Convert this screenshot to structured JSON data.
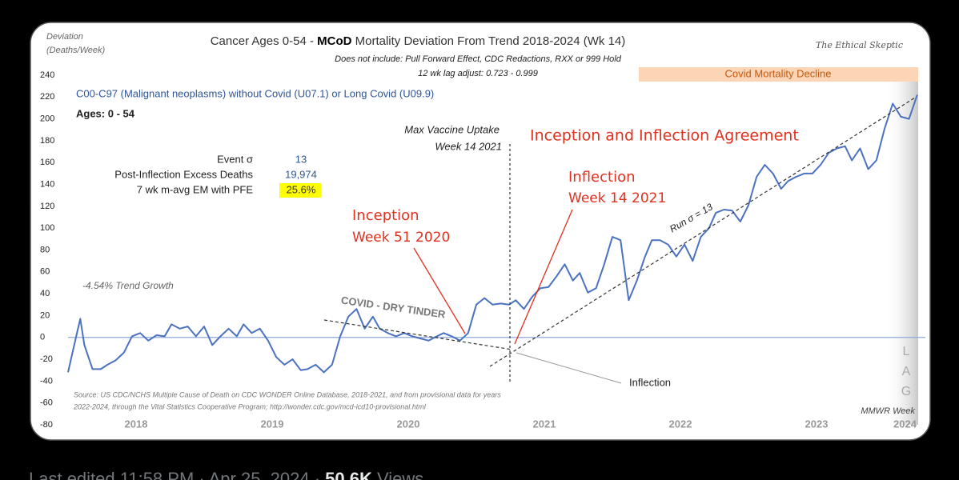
{
  "chart_data": {
    "type": "line",
    "title": [
      "Cancer  Ages 0-54 - ",
      "MCoD",
      " Mortality Deviation  From Trend  2018-2024 (Wk 14)"
    ],
    "subtitle": [
      "Does not include: Pull Forward Effect, CDC Redactions, RXX or 999 Hold",
      "12 wk lag adjust: 0.723 - 0.999"
    ],
    "y_label": [
      "Deviation",
      "(Deaths/Week)"
    ],
    "x_label": "MMWR Week",
    "brand": "The Ethical Skeptic",
    "ages": "Ages: 0 - 54",
    "stats": [
      {
        "label": "Event σ",
        "value": "13"
      },
      {
        "label": "Post-Inflection Excess Deaths",
        "value": "19,974"
      },
      {
        "label": "7 wk m-avg EM with PFE",
        "value": "25.6%"
      }
    ],
    "annotations": {
      "covid_band": "Covid Mortality Decline",
      "agreement": "Inception and Inflection Agreement",
      "inflection_red": [
        "Inflection",
        "Week 14 2021"
      ],
      "inception": [
        "Inception",
        "Week 51 2020"
      ],
      "vaccine": [
        "Max Vaccine Uptake",
        "Week 14 2021"
      ],
      "inflection": "Inflection",
      "dry_tinder": "COVID - DRY TINDER",
      "run": "Run σ = 13",
      "trend": "-4.54% Trend Growth",
      "lag": [
        "L",
        "A",
        "G"
      ],
      "source": [
        "Source: US CDC/NCHS Multiple Cause of Death on CDC WONDER Online Database, 2018-2021, and from provisional data for years",
        "2022-2024, through the Vital Statistics Cooperative Program; http://wonder.cdc.gov/mcd-icd10-provisional.html"
      ]
    },
    "xlim": [
      2018,
      2024.3
    ],
    "xticks": [
      {
        "value": 2018.5,
        "label": "2018"
      },
      {
        "value": 2019.5,
        "label": "2019"
      },
      {
        "value": 2020.5,
        "label": "2020"
      },
      {
        "value": 2021.5,
        "label": "2021"
      },
      {
        "value": 2022.5,
        "label": "2022"
      },
      {
        "value": 2023.5,
        "label": "2023"
      },
      {
        "value": 2024.15,
        "label": "2024"
      }
    ],
    "ylim": [
      -80,
      240
    ],
    "yticks": [
      -80,
      -60,
      -40,
      -20,
      0,
      20,
      40,
      60,
      80,
      100,
      120,
      140,
      160,
      180,
      200,
      220,
      240
    ],
    "grid": false,
    "x": [
      2018.0,
      2018.06,
      2018.09,
      2018.12,
      2018.18,
      2018.24,
      2018.29,
      2018.35,
      2018.41,
      2018.47,
      2018.53,
      2018.59,
      2018.65,
      2018.71,
      2018.76,
      2018.82,
      2018.88,
      2018.94,
      2019.0,
      2019.06,
      2019.12,
      2019.18,
      2019.24,
      2019.29,
      2019.35,
      2019.41,
      2019.47,
      2019.53,
      2019.59,
      2019.65,
      2019.71,
      2019.76,
      2019.82,
      2019.88,
      2019.94,
      2020.0,
      2020.06,
      2020.12,
      2020.18,
      2020.24,
      2020.29,
      2020.35,
      2020.41,
      2020.47,
      2020.53,
      2020.59,
      2020.65,
      2020.71,
      2020.76,
      2020.82,
      2020.88,
      2020.94,
      2021.0,
      2021.06,
      2021.12,
      2021.18,
      2021.24,
      2021.29,
      2021.35,
      2021.41,
      2021.47,
      2021.53,
      2021.59,
      2021.65,
      2021.71,
      2021.76,
      2021.82,
      2021.88,
      2021.94,
      2022.0,
      2022.06,
      2022.12,
      2022.18,
      2022.24,
      2022.29,
      2022.35,
      2022.41,
      2022.47,
      2022.53,
      2022.59,
      2022.65,
      2022.71,
      2022.76,
      2022.82,
      2022.88,
      2022.94,
      2023.0,
      2023.06,
      2023.12,
      2023.18,
      2023.24,
      2023.29,
      2023.35,
      2023.41,
      2023.47,
      2023.53,
      2023.59,
      2023.65,
      2023.71,
      2023.76,
      2023.82,
      2023.88,
      2023.94,
      2024.0,
      2024.06,
      2024.12,
      2024.18,
      2024.24
    ],
    "series": [
      {
        "name": "C00-C97 (Malignant neoplasms) without Covid (U07.1) or Long Covid (U09.9)",
        "color": "#4a72c0",
        "values": [
          -32,
          1,
          17,
          -7,
          -29,
          -29,
          -25,
          -21,
          -14,
          1,
          4,
          -3,
          2,
          1,
          12,
          8,
          10,
          1,
          10,
          -7,
          1,
          8,
          1,
          12,
          4,
          8,
          -3,
          -18,
          -25,
          -20,
          -30,
          -29,
          -25,
          -32,
          -25,
          1,
          19,
          26,
          8,
          19,
          8,
          4,
          1,
          4,
          1,
          -1,
          -3,
          1,
          4,
          1,
          -3,
          4,
          30,
          36,
          30,
          31,
          30,
          34,
          26,
          37,
          45,
          46,
          56,
          67,
          52,
          59,
          41,
          45,
          67,
          92,
          89,
          34,
          52,
          74,
          89,
          89,
          85,
          74,
          85,
          70,
          92,
          100,
          114,
          117,
          116,
          106,
          121,
          147,
          158,
          150,
          136,
          143,
          147,
          150,
          150,
          158,
          169,
          173,
          175,
          162,
          173,
          154,
          162,
          191,
          214,
          202,
          200,
          222
        ]
      }
    ]
  },
  "footer": [
    "Last edited 11:58 PM · Apr 25, 2024 · ",
    "50.6K",
    " Views"
  ]
}
